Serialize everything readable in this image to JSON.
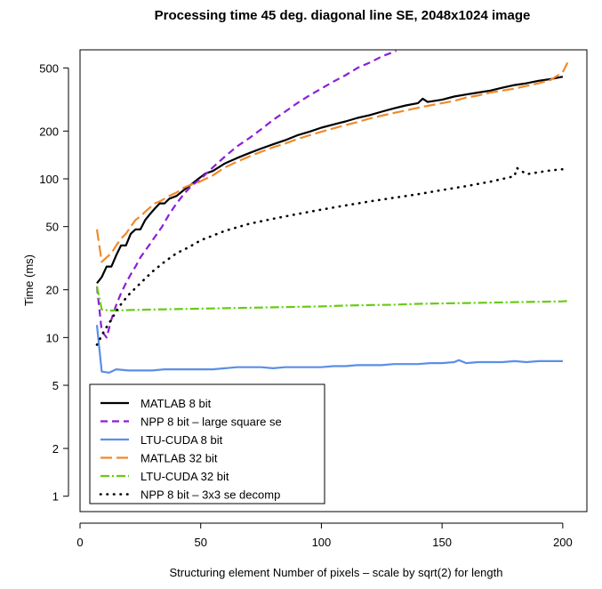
{
  "chart_data": {
    "type": "line",
    "title": "Processing time 45 deg. diagonal line SE, 2048x1024 image",
    "xlabel": "Structuring element Number of pixels – scale by sqrt(2) for length",
    "ylabel": "Time (ms)",
    "x_scale": "linear",
    "y_scale": "log",
    "xlim": [
      0,
      210
    ],
    "ylim": [
      0.8,
      650
    ],
    "x_ticks": [
      0,
      50,
      100,
      150,
      200
    ],
    "y_ticks": [
      1,
      2,
      5,
      10,
      20,
      50,
      100,
      200,
      500
    ],
    "x_tick_labels": [
      "0",
      "50",
      "100",
      "150",
      "200"
    ],
    "y_tick_labels": [
      "1",
      "2",
      "5",
      "10",
      "20",
      "50",
      "100",
      "200",
      "500"
    ],
    "grid": false,
    "legend_position": "bottom-left",
    "series": [
      {
        "name": "MATLAB 8 bit",
        "color": "#000000",
        "dash": "solid",
        "x": [
          7,
          9,
          11,
          13,
          15,
          17,
          19,
          21,
          23,
          25,
          27,
          29,
          31,
          33,
          35,
          37,
          40,
          43,
          46,
          49,
          52,
          55,
          60,
          65,
          70,
          75,
          80,
          85,
          90,
          95,
          100,
          105,
          110,
          115,
          120,
          125,
          130,
          135,
          140,
          142,
          144,
          150,
          155,
          160,
          165,
          170,
          175,
          180,
          185,
          190,
          195,
          200
        ],
        "values": [
          22,
          24,
          28,
          28,
          33,
          38,
          38,
          45,
          48,
          48,
          55,
          60,
          65,
          70,
          70,
          75,
          78,
          85,
          92,
          100,
          108,
          112,
          125,
          135,
          145,
          155,
          165,
          175,
          188,
          198,
          210,
          220,
          230,
          242,
          252,
          265,
          278,
          290,
          300,
          320,
          305,
          315,
          330,
          340,
          350,
          360,
          375,
          390,
          400,
          415,
          425,
          440
        ]
      },
      {
        "name": "NPP 8 bit – large square se",
        "color": "#8B1ED8",
        "dash": "8,5",
        "x": [
          7,
          9,
          11,
          13,
          15,
          17,
          19,
          21,
          23,
          25,
          28,
          31,
          34,
          37,
          40,
          43,
          46,
          50,
          55,
          60,
          65,
          70,
          75,
          80,
          85,
          90,
          95,
          100,
          105,
          110,
          115,
          120,
          125,
          131
        ],
        "values": [
          21,
          11,
          10,
          13,
          16,
          19,
          22,
          25,
          28,
          32,
          37,
          43,
          50,
          60,
          70,
          80,
          90,
          100,
          118,
          138,
          160,
          180,
          205,
          235,
          265,
          300,
          335,
          370,
          410,
          450,
          500,
          540,
          590,
          640
        ]
      },
      {
        "name": "LTU-CUDA 8 bit",
        "color": "#5B8FE6",
        "dash": "solid",
        "x": [
          7,
          9,
          12,
          15,
          20,
          25,
          30,
          35,
          40,
          45,
          50,
          55,
          60,
          65,
          70,
          75,
          80,
          85,
          90,
          95,
          100,
          105,
          110,
          115,
          120,
          125,
          130,
          135,
          140,
          145,
          150,
          155,
          157,
          160,
          165,
          170,
          175,
          180,
          185,
          190,
          195,
          200
        ],
        "values": [
          12,
          6.1,
          6.0,
          6.3,
          6.2,
          6.2,
          6.2,
          6.3,
          6.3,
          6.3,
          6.3,
          6.3,
          6.4,
          6.5,
          6.5,
          6.5,
          6.4,
          6.5,
          6.5,
          6.5,
          6.5,
          6.6,
          6.6,
          6.7,
          6.7,
          6.7,
          6.8,
          6.8,
          6.8,
          6.9,
          6.9,
          7.0,
          7.2,
          6.9,
          7.0,
          7.0,
          7.0,
          7.1,
          7.0,
          7.1,
          7.1,
          7.1
        ]
      },
      {
        "name": "MATLAB 32 bit",
        "color": "#F08A2C",
        "dash": "13,5",
        "x": [
          7,
          9,
          11,
          13,
          15,
          17,
          19,
          21,
          23,
          25,
          27,
          29,
          31,
          33,
          35,
          37,
          40,
          43,
          46,
          49,
          52,
          55,
          60,
          65,
          70,
          75,
          80,
          85,
          90,
          95,
          100,
          105,
          110,
          115,
          120,
          125,
          130,
          135,
          140,
          145,
          150,
          155,
          160,
          165,
          170,
          175,
          180,
          185,
          190,
          195,
          200,
          202
        ],
        "values": [
          48,
          30,
          32,
          34,
          38,
          42,
          45,
          50,
          55,
          58,
          62,
          66,
          70,
          72,
          75,
          78,
          82,
          88,
          92,
          95,
          100,
          105,
          118,
          128,
          138,
          148,
          158,
          167,
          178,
          188,
          198,
          208,
          218,
          228,
          240,
          250,
          260,
          270,
          280,
          290,
          300,
          310,
          325,
          335,
          350,
          360,
          370,
          385,
          400,
          420,
          470,
          540
        ]
      },
      {
        "name": "LTU-CUDA 32 bit",
        "color": "#66CC11",
        "dash": "10,3,2,3",
        "x": [
          7,
          9,
          12,
          15,
          20,
          30,
          40,
          50,
          60,
          70,
          80,
          90,
          100,
          110,
          120,
          130,
          140,
          150,
          160,
          170,
          180,
          190,
          200,
          202
        ],
        "values": [
          21,
          15,
          14.8,
          14.8,
          14.9,
          15.0,
          15.1,
          15.2,
          15.3,
          15.4,
          15.5,
          15.6,
          15.7,
          15.9,
          16.0,
          16.1,
          16.3,
          16.4,
          16.5,
          16.6,
          16.7,
          16.8,
          16.9,
          17.0
        ]
      },
      {
        "name": "NPP 8 bit – 3x3 se decomp",
        "color": "#000000",
        "dash": "2,6",
        "x": [
          7,
          10,
          13,
          16,
          20,
          25,
          30,
          35,
          40,
          45,
          50,
          60,
          70,
          80,
          90,
          100,
          110,
          120,
          130,
          140,
          150,
          160,
          170,
          180,
          181,
          185,
          190,
          195,
          200
        ],
        "values": [
          9.0,
          11,
          13,
          15.5,
          18.5,
          22,
          26,
          30,
          34,
          37,
          41,
          47,
          52,
          56,
          60,
          64,
          68,
          72,
          76,
          80,
          85,
          90,
          96,
          104,
          117,
          107,
          110,
          113,
          115
        ]
      }
    ]
  }
}
